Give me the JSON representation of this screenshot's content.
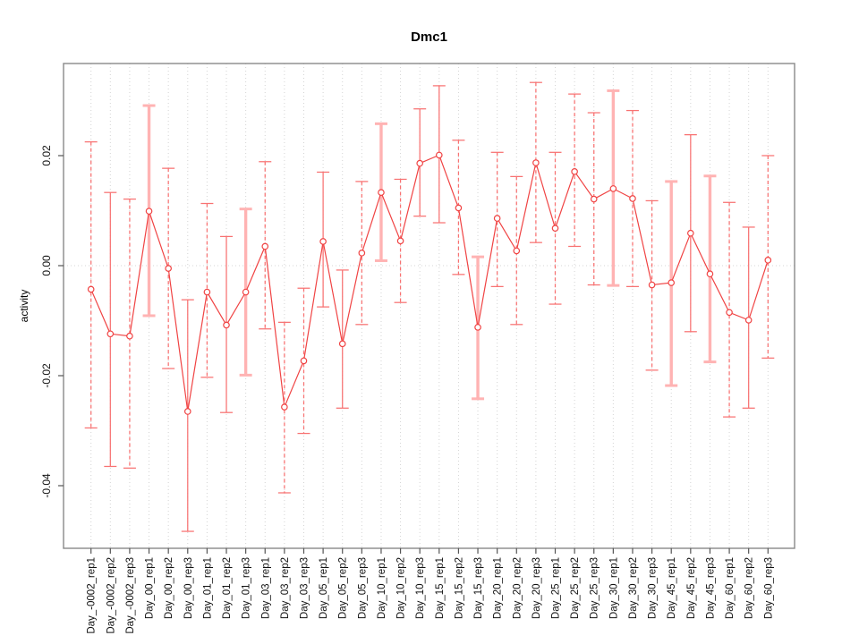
{
  "chart_data": {
    "type": "line",
    "title": "Dmc1",
    "xlabel": "",
    "ylabel": "activity",
    "ylim": [
      -0.05,
      0.036
    ],
    "grid": "vertical dotted gridline at every category; dotted horizontal line at y=0",
    "legend_position": "none",
    "marker": "open-circle",
    "error_bars": true,
    "colors": {
      "series": "#f04343",
      "error_bar": "#f87272",
      "error_bar_light": "#ffb3b3",
      "grid": "#d4d4d4",
      "box": "#888888",
      "tick": "#555555",
      "text": "#111111"
    },
    "yticks": [
      {
        "value": 0.02,
        "label": "0.02"
      },
      {
        "value": 0.0,
        "label": "0.00"
      },
      {
        "value": -0.02,
        "label": "-0.02"
      },
      {
        "value": -0.04,
        "label": "-0.04"
      }
    ],
    "categories": [
      "Day_-0002_rep1",
      "Day_-0002_rep2",
      "Day_-0002_rep3",
      "Day_00_rep1",
      "Day_00_rep2",
      "Day_00_rep3",
      "Day_01_rep1",
      "Day_01_rep2",
      "Day_01_rep3",
      "Day_03_rep1",
      "Day_03_rep2",
      "Day_03_rep3",
      "Day_05_rep1",
      "Day_05_rep2",
      "Day_05_rep3",
      "Day_10_rep1",
      "Day_10_rep2",
      "Day_10_rep3",
      "Day_15_rep1",
      "Day_15_rep2",
      "Day_15_rep3",
      "Day_20_rep1",
      "Day_20_rep2",
      "Day_20_rep3",
      "Day_25_rep1",
      "Day_25_rep2",
      "Day_25_rep3",
      "Day_30_rep1",
      "Day_30_rep2",
      "Day_30_rep3",
      "Day_45_rep1",
      "Day_45_rep2",
      "Day_45_rep3",
      "Day_60_rep1",
      "Day_60_rep2",
      "Day_60_rep3"
    ],
    "series": [
      {
        "name": "activity",
        "values": [
          -0.0043,
          -0.0124,
          -0.0128,
          0.0099,
          -0.0005,
          -0.0265,
          -0.0048,
          -0.0108,
          -0.0048,
          0.0035,
          -0.0257,
          -0.0173,
          0.0044,
          -0.0142,
          0.0023,
          0.0133,
          0.0045,
          0.0186,
          0.0201,
          0.0105,
          -0.0112,
          0.0086,
          0.0027,
          0.0187,
          0.0068,
          0.0171,
          0.0121,
          0.014,
          0.0122,
          -0.0035,
          -0.0031,
          0.0059,
          -0.0015,
          -0.0085,
          -0.0099,
          0.001
        ],
        "error_high": [
          0.0225,
          0.0133,
          0.0121,
          0.0291,
          0.0177,
          -0.0062,
          0.0113,
          0.0053,
          0.0103,
          0.0189,
          -0.0103,
          -0.0041,
          0.017,
          -0.0008,
          0.0153,
          0.0258,
          0.0157,
          0.0285,
          0.0327,
          0.0228,
          0.0016,
          0.0206,
          0.0162,
          0.0333,
          0.0206,
          0.0312,
          0.0278,
          0.0318,
          0.0282,
          0.0118,
          0.0153,
          0.0238,
          0.0163,
          0.0115,
          0.007,
          0.02
        ],
        "error_low": [
          -0.0295,
          -0.0365,
          -0.0368,
          -0.0091,
          -0.0187,
          -0.0483,
          -0.0203,
          -0.0267,
          -0.0199,
          -0.0115,
          -0.0413,
          -0.0305,
          -0.0075,
          -0.0259,
          -0.0107,
          0.0009,
          -0.0067,
          0.009,
          0.0078,
          -0.0016,
          -0.0242,
          -0.0038,
          -0.0107,
          0.0042,
          -0.007,
          0.0035,
          -0.0035,
          -0.0036,
          -0.0038,
          -0.019,
          -0.0218,
          -0.012,
          -0.0175,
          -0.0275,
          -0.0259,
          -0.0168
        ],
        "bar_styles": [
          "dashed",
          "solid",
          "dashed",
          "thick",
          "dashed",
          "solid",
          "dashed",
          "solid",
          "thick",
          "dashed",
          "dashed",
          "dashed",
          "solid",
          "solid",
          "dashed",
          "thick",
          "dashed",
          "solid",
          "solid",
          "dashed",
          "thick",
          "dashed",
          "dashed",
          "dashed",
          "dashed",
          "dashed",
          "dashed",
          "thick",
          "dashed",
          "dashed",
          "thick",
          "solid",
          "thick",
          "dashed",
          "solid",
          "dashed"
        ]
      }
    ]
  }
}
